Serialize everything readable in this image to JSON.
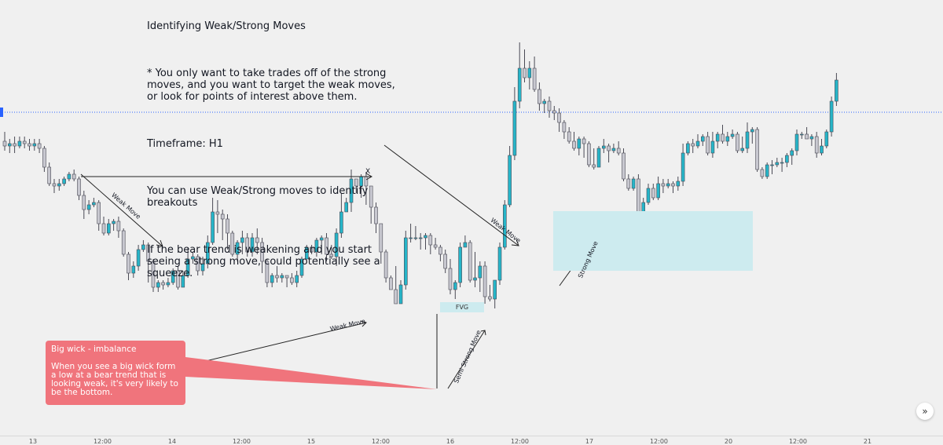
{
  "notes": {
    "title": "Identifying Weak/Strong Moves",
    "line1": "* You only want to take trades off of the strong moves, and you want to target the weak moves, or look for points of interest above them.",
    "line2": "Timeframe: H1",
    "line3": "You can use Weak/Strong moves to identify breakouts",
    "line4": "If the bear trend is weakening and you start seeing a strong move, could potentially see a squeeze."
  },
  "callout": {
    "title": "Big wick - imbalance",
    "body": "When you see a big wick form a low at a bear trend that is looking weak, it's very likely to be the bottom."
  },
  "labels": {
    "weak_move": "Weak Move",
    "semi_strong_move": "Semi Strong Move",
    "strong_move": "Strong Move",
    "fvg": "FVG",
    "x_mark": "X"
  },
  "scroll_button": "»",
  "colors": {
    "bull": "#26b5c8",
    "bear": "#c8c8d0",
    "wick": "#4a4a55",
    "zone": "#cdebef",
    "callout": "#f0747c",
    "dotted_line": "#2962ff"
  },
  "chart_data": {
    "type": "candlestick",
    "timeframe": "H1",
    "x_tick_labels": [
      "13",
      "12:00",
      "14",
      "12:00",
      "15",
      "12:00",
      "16",
      "12:00",
      "17",
      "12:00",
      "20",
      "12:00",
      "21"
    ],
    "candles": [
      [
        95,
        93,
        99,
        91
      ],
      [
        93,
        94,
        96,
        90
      ],
      [
        94,
        93,
        97,
        90
      ],
      [
        93,
        95,
        97,
        92
      ],
      [
        95,
        94,
        97,
        92
      ],
      [
        94,
        93,
        96,
        91
      ],
      [
        93,
        94,
        96,
        91
      ],
      [
        94,
        92,
        96,
        90
      ],
      [
        92,
        84,
        93,
        82
      ],
      [
        84,
        77,
        86,
        76
      ],
      [
        77,
        76,
        79,
        73
      ],
      [
        76,
        77,
        79,
        74
      ],
      [
        77,
        79,
        80,
        76
      ],
      [
        79,
        81,
        82,
        78
      ],
      [
        81,
        79,
        83,
        78
      ],
      [
        79,
        72,
        80,
        70
      ],
      [
        72,
        66,
        74,
        62
      ],
      [
        66,
        68,
        70,
        64
      ],
      [
        68,
        69,
        71,
        67
      ],
      [
        69,
        60,
        70,
        57
      ],
      [
        60,
        56,
        63,
        55
      ],
      [
        56,
        60,
        62,
        55
      ],
      [
        60,
        61,
        62,
        57
      ],
      [
        61,
        57,
        63,
        54
      ],
      [
        57,
        47,
        58,
        46
      ],
      [
        47,
        39,
        48,
        36
      ],
      [
        39,
        42,
        44,
        37
      ],
      [
        42,
        49,
        51,
        40
      ],
      [
        49,
        51,
        53,
        48
      ],
      [
        51,
        44,
        52,
        35
      ],
      [
        44,
        33,
        45,
        31
      ],
      [
        33,
        35,
        36,
        31
      ],
      [
        35,
        34,
        36,
        32
      ],
      [
        34,
        35,
        37,
        33
      ],
      [
        35,
        40,
        41,
        34
      ],
      [
        40,
        33,
        42,
        32
      ],
      [
        33,
        38,
        40,
        33
      ],
      [
        38,
        45,
        50,
        37
      ],
      [
        45,
        46,
        48,
        43
      ],
      [
        46,
        40,
        47,
        38
      ],
      [
        40,
        43,
        46,
        38
      ],
      [
        43,
        52,
        55,
        41
      ],
      [
        52,
        65,
        71,
        51
      ],
      [
        65,
        64,
        70,
        56
      ],
      [
        64,
        62,
        66,
        53
      ],
      [
        62,
        56,
        64,
        49
      ],
      [
        56,
        47,
        57,
        46
      ],
      [
        47,
        52,
        53,
        44
      ],
      [
        52,
        54,
        57,
        47
      ],
      [
        54,
        48,
        56,
        46
      ],
      [
        48,
        54,
        56,
        46
      ],
      [
        54,
        52,
        58,
        47
      ],
      [
        52,
        44,
        54,
        39
      ],
      [
        44,
        35,
        45,
        33
      ],
      [
        35,
        38,
        39,
        33
      ],
      [
        38,
        37,
        42,
        35
      ],
      [
        37,
        38,
        39,
        35
      ],
      [
        38,
        37,
        38,
        33
      ],
      [
        37,
        35,
        39,
        34
      ],
      [
        35,
        38,
        40,
        33
      ],
      [
        38,
        45,
        46,
        37
      ],
      [
        45,
        50,
        51,
        45
      ],
      [
        50,
        48,
        51,
        47
      ],
      [
        48,
        53,
        54,
        46
      ],
      [
        53,
        54,
        55,
        47
      ],
      [
        54,
        47,
        56,
        44
      ],
      [
        47,
        46,
        51,
        45
      ],
      [
        46,
        56,
        58,
        42
      ],
      [
        56,
        65,
        73,
        54
      ],
      [
        65,
        69,
        71,
        65
      ],
      [
        69,
        79,
        83,
        65
      ],
      [
        79,
        76,
        79,
        73
      ],
      [
        76,
        80,
        81,
        71
      ],
      [
        80,
        76,
        82,
        68
      ],
      [
        76,
        67,
        76,
        60
      ],
      [
        67,
        60,
        69,
        56
      ],
      [
        60,
        48,
        60,
        43
      ],
      [
        48,
        37,
        49,
        35
      ],
      [
        37,
        32,
        38,
        32
      ],
      [
        32,
        26,
        42,
        26
      ],
      [
        26,
        34,
        36,
        26
      ],
      [
        34,
        54,
        57,
        32
      ],
      [
        54,
        54,
        60,
        52
      ],
      [
        54,
        54,
        59,
        53
      ],
      [
        54,
        54,
        56,
        49
      ],
      [
        54,
        55,
        56,
        49
      ],
      [
        55,
        51,
        56,
        47
      ],
      [
        51,
        50,
        54,
        49
      ],
      [
        50,
        47,
        51,
        44
      ],
      [
        47,
        41,
        49,
        39
      ],
      [
        41,
        32,
        45,
        30
      ],
      [
        32,
        35,
        36,
        28
      ],
      [
        35,
        50,
        52,
        33
      ],
      [
        50,
        52,
        55,
        50
      ],
      [
        52,
        36,
        53,
        35
      ],
      [
        36,
        37,
        48,
        33
      ],
      [
        37,
        42,
        44,
        31
      ],
      [
        42,
        29,
        44,
        26
      ],
      [
        29,
        28,
        34,
        27
      ],
      [
        28,
        36,
        36,
        24
      ],
      [
        36,
        50,
        52,
        34
      ],
      [
        50,
        68,
        70,
        49
      ],
      [
        68,
        89,
        93,
        67
      ],
      [
        89,
        112,
        118,
        87
      ],
      [
        112,
        126,
        137,
        109
      ],
      [
        126,
        122,
        134,
        120
      ],
      [
        122,
        126,
        129,
        117
      ],
      [
        126,
        117,
        131,
        116
      ],
      [
        117,
        111,
        120,
        108
      ],
      [
        111,
        112,
        113,
        107
      ],
      [
        112,
        108,
        114,
        105
      ],
      [
        108,
        107,
        110,
        104
      ],
      [
        107,
        103,
        109,
        99
      ],
      [
        103,
        99,
        104,
        96
      ],
      [
        99,
        95,
        101,
        94
      ],
      [
        95,
        92,
        99,
        91
      ],
      [
        92,
        96,
        97,
        89
      ],
      [
        96,
        94,
        97,
        88
      ],
      [
        94,
        85,
        95,
        84
      ],
      [
        85,
        84,
        92,
        83
      ],
      [
        84,
        92,
        93,
        84
      ],
      [
        92,
        93,
        96,
        90
      ],
      [
        93,
        91,
        94,
        86
      ],
      [
        91,
        92,
        94,
        90
      ],
      [
        92,
        90,
        95,
        89
      ],
      [
        90,
        79,
        92,
        78
      ],
      [
        79,
        75,
        81,
        74
      ],
      [
        75,
        79,
        80,
        74
      ],
      [
        79,
        65,
        81,
        63
      ],
      [
        65,
        69,
        71,
        62
      ],
      [
        69,
        75,
        77,
        68
      ],
      [
        75,
        71,
        77,
        70
      ],
      [
        71,
        77,
        80,
        70
      ],
      [
        77,
        76,
        79,
        73
      ],
      [
        76,
        77,
        79,
        75
      ],
      [
        77,
        76,
        78,
        73
      ],
      [
        76,
        78,
        80,
        74
      ],
      [
        78,
        90,
        94,
        76
      ],
      [
        90,
        94,
        95,
        89
      ],
      [
        94,
        93,
        96,
        90
      ],
      [
        93,
        95,
        98,
        92
      ],
      [
        95,
        97,
        98,
        93
      ],
      [
        97,
        90,
        99,
        89
      ],
      [
        90,
        95,
        99,
        88
      ],
      [
        95,
        98,
        99,
        92
      ],
      [
        98,
        95,
        102,
        94
      ],
      [
        95,
        97,
        99,
        93
      ],
      [
        97,
        98,
        100,
        96
      ],
      [
        98,
        91,
        99,
        90
      ],
      [
        91,
        92,
        97,
        90
      ],
      [
        92,
        99,
        103,
        90
      ],
      [
        99,
        100,
        101,
        94
      ],
      [
        100,
        83,
        101,
        82
      ],
      [
        83,
        80,
        84,
        79
      ],
      [
        80,
        85,
        86,
        79
      ],
      [
        85,
        85,
        87,
        81
      ],
      [
        85,
        86,
        88,
        84
      ],
      [
        86,
        86,
        88,
        82
      ],
      [
        86,
        89,
        90,
        84
      ],
      [
        89,
        91,
        92,
        85
      ],
      [
        91,
        98,
        100,
        89
      ],
      [
        98,
        98,
        99,
        96
      ],
      [
        98,
        96,
        101,
        96
      ],
      [
        96,
        97,
        98,
        93
      ],
      [
        97,
        90,
        99,
        88
      ],
      [
        90,
        93,
        96,
        89
      ],
      [
        93,
        99,
        100,
        92
      ],
      [
        99,
        112,
        114,
        97
      ],
      [
        112,
        121,
        124,
        110
      ]
    ],
    "annotations": [
      "Weak Move",
      "Weak Move",
      "Weak Move",
      "Semi Strong Move",
      "Strong Move",
      "FVG",
      "X"
    ]
  }
}
